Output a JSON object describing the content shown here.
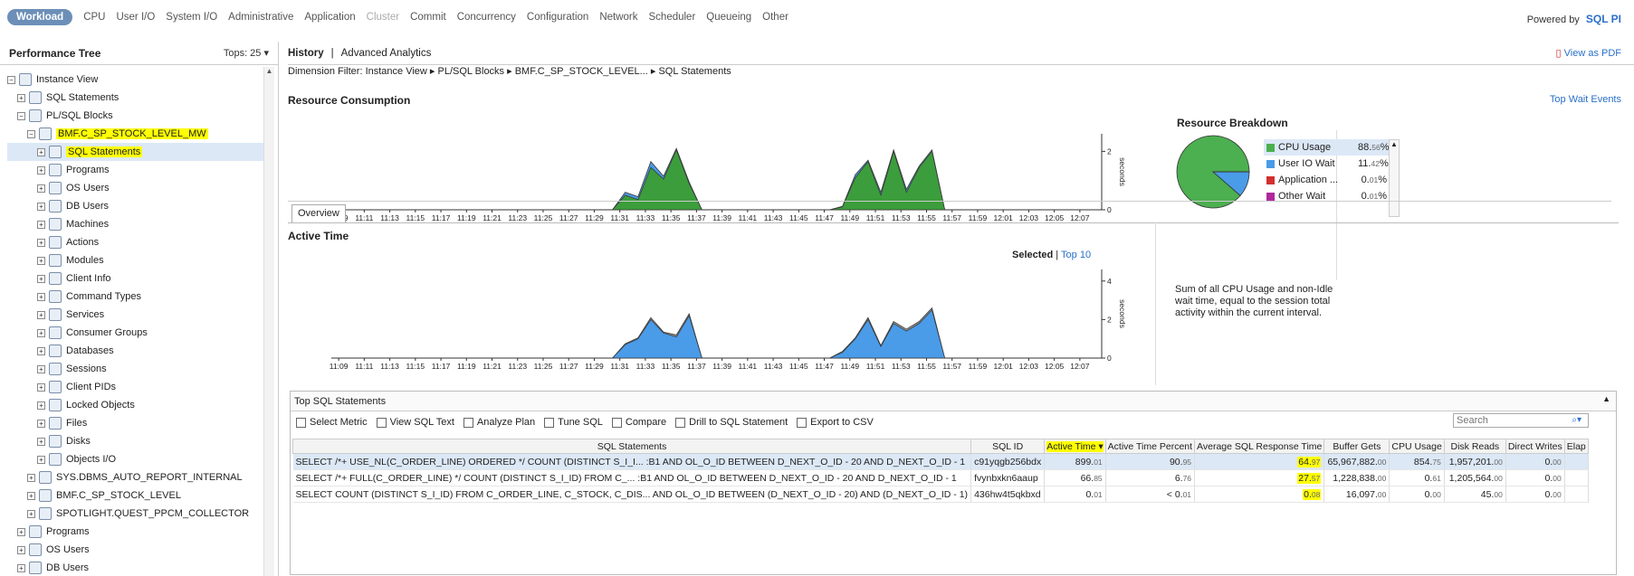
{
  "topnav": {
    "tabs": [
      {
        "label": "Workload",
        "active": true,
        "dim": false
      },
      {
        "label": "CPU",
        "dim": false
      },
      {
        "label": "User I/O",
        "dim": false
      },
      {
        "label": "System I/O",
        "dim": false
      },
      {
        "label": "Administrative",
        "dim": false
      },
      {
        "label": "Application",
        "dim": false
      },
      {
        "label": "Cluster",
        "dim": true
      },
      {
        "label": "Commit",
        "dim": false
      },
      {
        "label": "Concurrency",
        "dim": false
      },
      {
        "label": "Configuration",
        "dim": false
      },
      {
        "label": "Network",
        "dim": false
      },
      {
        "label": "Scheduler",
        "dim": false
      },
      {
        "label": "Queueing",
        "dim": false
      },
      {
        "label": "Other",
        "dim": false
      }
    ],
    "powered_by": "Powered by",
    "logo": "SQL PI"
  },
  "left": {
    "title": "Performance Tree",
    "tops": "Tops: 25 ▾",
    "tree": [
      {
        "label": "Instance View",
        "indent": 0,
        "exp": "−",
        "icon": "instance-icon"
      },
      {
        "label": "SQL Statements",
        "indent": 1,
        "exp": "+",
        "icon": "sql-icon"
      },
      {
        "label": "PL/SQL Blocks",
        "indent": 1,
        "exp": "−",
        "icon": "plsql-icon"
      },
      {
        "label": "BMF.C_SP_STOCK_LEVEL_MW",
        "indent": 2,
        "exp": "−",
        "icon": "plsql-icon",
        "hl": true
      },
      {
        "label": "SQL Statements",
        "indent": 3,
        "exp": "+",
        "icon": "sql-icon",
        "hl": true,
        "selected": true
      },
      {
        "label": "Programs",
        "indent": 3,
        "exp": "+",
        "icon": "programs-icon"
      },
      {
        "label": "OS Users",
        "indent": 3,
        "exp": "+",
        "icon": "os-users-icon"
      },
      {
        "label": "DB Users",
        "indent": 3,
        "exp": "+",
        "icon": "db-users-icon"
      },
      {
        "label": "Machines",
        "indent": 3,
        "exp": "+",
        "icon": "machines-icon"
      },
      {
        "label": "Actions",
        "indent": 3,
        "exp": "+",
        "icon": "actions-icon"
      },
      {
        "label": "Modules",
        "indent": 3,
        "exp": "+",
        "icon": "modules-icon"
      },
      {
        "label": "Client Info",
        "indent": 3,
        "exp": "+",
        "icon": "client-info-icon"
      },
      {
        "label": "Command Types",
        "indent": 3,
        "exp": "+",
        "icon": "command-types-icon"
      },
      {
        "label": "Services",
        "indent": 3,
        "exp": "+",
        "icon": "services-icon"
      },
      {
        "label": "Consumer Groups",
        "indent": 3,
        "exp": "+",
        "icon": "consumer-groups-icon"
      },
      {
        "label": "Databases",
        "indent": 3,
        "exp": "+",
        "icon": "databases-icon"
      },
      {
        "label": "Sessions",
        "indent": 3,
        "exp": "+",
        "icon": "sessions-icon"
      },
      {
        "label": "Client PIDs",
        "indent": 3,
        "exp": "+",
        "icon": "client-pids-icon"
      },
      {
        "label": "Locked Objects",
        "indent": 3,
        "exp": "+",
        "icon": "locked-objects-icon"
      },
      {
        "label": "Files",
        "indent": 3,
        "exp": "+",
        "icon": "files-icon"
      },
      {
        "label": "Disks",
        "indent": 3,
        "exp": "+",
        "icon": "disks-icon"
      },
      {
        "label": "Objects I/O",
        "indent": 3,
        "exp": "+",
        "icon": "objects-io-icon"
      },
      {
        "label": "SYS.DBMS_AUTO_REPORT_INTERNAL",
        "indent": 2,
        "exp": "+",
        "icon": "plsql-icon"
      },
      {
        "label": "BMF.C_SP_STOCK_LEVEL",
        "indent": 2,
        "exp": "+",
        "icon": "plsql-icon"
      },
      {
        "label": "SPOTLIGHT.QUEST_PPCM_COLLECTOR",
        "indent": 2,
        "exp": "+",
        "icon": "plsql-icon"
      },
      {
        "label": "Programs",
        "indent": 1,
        "exp": "+",
        "icon": "programs-icon"
      },
      {
        "label": "OS Users",
        "indent": 1,
        "exp": "+",
        "icon": "os-users-icon"
      },
      {
        "label": "DB Users",
        "indent": 1,
        "exp": "+",
        "icon": "db-users-icon"
      }
    ]
  },
  "main": {
    "tab_history": "History",
    "tab_sep": "|",
    "tab_advanced": "Advanced Analytics",
    "view_pdf": "View as PDF",
    "filter": "Dimension Filter: Instance View ▸ PL/SQL Blocks ▸ BMF.C_SP_STOCK_LEVEL... ▸ SQL Statements",
    "resource_title": "Resource Consumption",
    "top_wait": "Top Wait Events",
    "breakdown_title": "Resource Breakdown",
    "overview_tab": "Overview",
    "active_time_title": "Active Time",
    "selected_label": "Selected",
    "top10_label": "Top 10",
    "description": "Sum of all CPU Usage and non-Idle wait time, equal to the session total activity within the current interval."
  },
  "breakdown": {
    "legend": [
      {
        "name": "CPU Usage",
        "int": "88.",
        "dec": "56",
        "color": "#4caf50",
        "selected": true
      },
      {
        "name": "User IO Wait",
        "int": "11.",
        "dec": "42",
        "color": "#4a9be8"
      },
      {
        "name": "Application ...",
        "int": "0.",
        "dec": "01",
        "color": "#d32f2f"
      },
      {
        "name": "Other Wait",
        "int": "0.",
        "dec": "01",
        "color": "#b0289c"
      }
    ],
    "pct_sign": "%"
  },
  "chart_data": [
    {
      "type": "area",
      "title": "Resource Consumption",
      "ylabel": "seconds",
      "ylim": [
        0,
        2.6
      ],
      "yticks": [
        "0",
        "2"
      ],
      "x": [
        "11:09",
        "11:11",
        "11:13",
        "11:15",
        "11:17",
        "11:19",
        "11:21",
        "11:23",
        "11:25",
        "11:27",
        "11:29",
        "11:31",
        "11:33",
        "11:35",
        "11:37",
        "11:39",
        "11:41",
        "11:43",
        "11:45",
        "11:47",
        "11:49",
        "11:51",
        "11:53",
        "11:55",
        "11:57",
        "11:59",
        "12:01",
        "12:03",
        "12:05",
        "12:07"
      ],
      "series": [
        {
          "color": "#3c9d3c",
          "points": [
            [
              22,
              0
            ],
            [
              23,
              0.5
            ],
            [
              24,
              0.35
            ],
            [
              25,
              1.45
            ],
            [
              26,
              1.05
            ],
            [
              27,
              2.05
            ],
            [
              28,
              0.9
            ],
            [
              29,
              0
            ],
            [
              39,
              0
            ],
            [
              40,
              0.1
            ],
            [
              41,
              1.1
            ],
            [
              42,
              1.65
            ],
            [
              43,
              0.5
            ],
            [
              44,
              2.0
            ],
            [
              45,
              0.6
            ],
            [
              46,
              1.45
            ],
            [
              47,
              2.0
            ],
            [
              48,
              0
            ]
          ]
        },
        {
          "color": "#4a9be8",
          "points": [
            [
              22,
              0
            ],
            [
              23,
              0.6
            ],
            [
              24,
              0.45
            ],
            [
              25,
              1.65
            ],
            [
              26,
              1.15
            ],
            [
              27,
              2.1
            ],
            [
              28,
              0.95
            ],
            [
              29,
              0
            ],
            [
              39,
              0
            ],
            [
              40,
              0.12
            ],
            [
              41,
              1.2
            ],
            [
              42,
              1.7
            ],
            [
              43,
              0.6
            ],
            [
              44,
              2.05
            ],
            [
              45,
              0.7
            ],
            [
              46,
              1.5
            ],
            [
              47,
              2.05
            ],
            [
              48,
              0
            ]
          ]
        }
      ]
    },
    {
      "type": "area",
      "title": "Active Time",
      "ylabel": "seconds",
      "ylim": [
        0,
        4.6
      ],
      "yticks": [
        "0",
        "2",
        "4"
      ],
      "x": [
        "11:09",
        "11:11",
        "11:13",
        "11:15",
        "11:17",
        "11:19",
        "11:21",
        "11:23",
        "11:25",
        "11:27",
        "11:29",
        "11:31",
        "11:33",
        "11:35",
        "11:37",
        "11:39",
        "11:41",
        "11:43",
        "11:45",
        "11:47",
        "11:49",
        "11:51",
        "11:53",
        "11:55",
        "11:57",
        "11:59",
        "12:01",
        "12:03",
        "12:05",
        "12:07"
      ],
      "series": [
        {
          "color": "#4a9be8",
          "points": [
            [
              22,
              0
            ],
            [
              23,
              0.7
            ],
            [
              24,
              1.0
            ],
            [
              25,
              2.0
            ],
            [
              26,
              1.3
            ],
            [
              27,
              1.1
            ],
            [
              28,
              2.2
            ],
            [
              29,
              0
            ],
            [
              39,
              0
            ],
            [
              40,
              0.3
            ],
            [
              41,
              1.0
            ],
            [
              42,
              2.0
            ],
            [
              43,
              0.6
            ],
            [
              44,
              1.8
            ],
            [
              45,
              1.4
            ],
            [
              46,
              1.8
            ],
            [
              47,
              2.5
            ],
            [
              48,
              0
            ]
          ]
        },
        {
          "color": "#999999",
          "points": [
            [
              22,
              0
            ],
            [
              23,
              0.75
            ],
            [
              24,
              1.05
            ],
            [
              25,
              2.1
            ],
            [
              26,
              1.35
            ],
            [
              27,
              1.2
            ],
            [
              28,
              2.3
            ],
            [
              29,
              0
            ],
            [
              39,
              0
            ],
            [
              40,
              0.35
            ],
            [
              41,
              1.05
            ],
            [
              42,
              2.1
            ],
            [
              43,
              0.65
            ],
            [
              44,
              1.9
            ],
            [
              45,
              1.5
            ],
            [
              46,
              1.9
            ],
            [
              47,
              2.6
            ],
            [
              48,
              0
            ]
          ]
        }
      ]
    },
    {
      "type": "pie",
      "title": "Resource Breakdown",
      "slices": [
        {
          "name": "CPU Usage",
          "value": 88.56,
          "color": "#4caf50"
        },
        {
          "name": "User IO Wait",
          "value": 11.42,
          "color": "#4a9be8"
        },
        {
          "name": "Application ...",
          "value": 0.01,
          "color": "#d32f2f"
        },
        {
          "name": "Other Wait",
          "value": 0.01,
          "color": "#b0289c"
        }
      ]
    }
  ],
  "topsql": {
    "title": "Top SQL Statements",
    "toolbar": [
      {
        "label": "Select Metric",
        "icon": "metric-icon"
      },
      {
        "label": "View SQL Text",
        "icon": "view-sql-icon"
      },
      {
        "label": "Analyze Plan",
        "icon": "analyze-plan-icon"
      },
      {
        "label": "Tune SQL",
        "icon": "tune-sql-icon"
      },
      {
        "label": "Compare",
        "icon": "compare-icon"
      },
      {
        "label": "Drill to SQL Statement",
        "icon": "drill-icon"
      },
      {
        "label": "Export to CSV",
        "icon": "csv-icon"
      }
    ],
    "search_placeholder": "Search",
    "columns": [
      "SQL Statements",
      "SQL ID",
      "Active Time ▾",
      "Active Time Percent",
      "Average SQL Response Time",
      "Buffer Gets",
      "CPU Usage",
      "Disk Reads",
      "Direct Writes",
      "Elap"
    ],
    "rows": [
      {
        "sql": "SELECT /*+ USE_NL(C_ORDER_LINE) ORDERED */ COUNT (DISTINCT S_I_I... :B1 AND OL_O_ID BETWEEN D_NEXT_O_ID - 20 AND D_NEXT_O_ID - 1",
        "id": "c91yqgb256bdx",
        "at": [
          "899.",
          "01"
        ],
        "atp": [
          "90.",
          "95"
        ],
        "avg": [
          "64.",
          "97"
        ],
        "bg": [
          "65,967,882.",
          "00"
        ],
        "cpu": [
          "854.",
          "75"
        ],
        "dr": [
          "1,957,201.",
          "00"
        ],
        "dw": [
          "0.",
          "00"
        ]
      },
      {
        "sql": "SELECT /*+ FULL(C_ORDER_LINE) */ COUNT (DISTINCT S_I_ID) FROM C_... :B1 AND OL_O_ID BETWEEN D_NEXT_O_ID - 20 AND D_NEXT_O_ID - 1",
        "id": "fvynbxkn6aaup",
        "at": [
          "66.",
          "85"
        ],
        "atp": [
          "6.",
          "76"
        ],
        "avg": [
          "27.",
          "57"
        ],
        "bg": [
          "1,228,838.",
          "00"
        ],
        "cpu": [
          "0.",
          "61"
        ],
        "dr": [
          "1,205,564.",
          "00"
        ],
        "dw": [
          "0.",
          "00"
        ]
      },
      {
        "sql": "SELECT COUNT (DISTINCT S_I_ID) FROM C_ORDER_LINE, C_STOCK, C_DIS... AND OL_O_ID BETWEEN (D_NEXT_O_ID - 20) AND (D_NEXT_O_ID - 1)",
        "id": "436hw4t5qkbxd",
        "at": [
          "0.",
          "01"
        ],
        "atp": [
          "< 0.",
          "01"
        ],
        "avg": [
          "0.",
          "08"
        ],
        "bg": [
          "16,097.",
          "00"
        ],
        "cpu": [
          "0.",
          "00"
        ],
        "dr": [
          "45.",
          "00"
        ],
        "dw": [
          "0.",
          "00"
        ]
      }
    ]
  }
}
